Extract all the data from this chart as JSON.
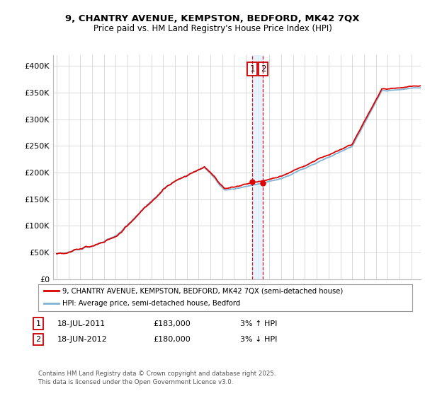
{
  "title1": "9, CHANTRY AVENUE, KEMPSTON, BEDFORD, MK42 7QX",
  "title2": "Price paid vs. HM Land Registry's House Price Index (HPI)",
  "ylabel_ticks": [
    "£0",
    "£50K",
    "£100K",
    "£150K",
    "£200K",
    "£250K",
    "£300K",
    "£350K",
    "£400K"
  ],
  "ytick_values": [
    0,
    50000,
    100000,
    150000,
    200000,
    250000,
    300000,
    350000,
    400000
  ],
  "ylim": [
    0,
    420000
  ],
  "xlim_start": 1994.7,
  "xlim_end": 2025.8,
  "xticks": [
    1995,
    1996,
    1997,
    1998,
    1999,
    2000,
    2001,
    2002,
    2003,
    2004,
    2005,
    2006,
    2007,
    2008,
    2009,
    2010,
    2011,
    2012,
    2013,
    2014,
    2015,
    2016,
    2017,
    2018,
    2019,
    2020,
    2021,
    2022,
    2023,
    2024,
    2025
  ],
  "property_color": "#dd0000",
  "hpi_color": "#7fb3d3",
  "vline1_x": 2011.54,
  "vline2_x": 2012.46,
  "vline_color": "#cc0000",
  "shade_color": "#ddeeff",
  "marker1_x": 2011.54,
  "marker1_y": 183000,
  "marker2_x": 2012.46,
  "marker2_y": 180000,
  "legend_label1": "9, CHANTRY AVENUE, KEMPSTON, BEDFORD, MK42 7QX (semi-detached house)",
  "legend_label2": "HPI: Average price, semi-detached house, Bedford",
  "footnote": "Contains HM Land Registry data © Crown copyright and database right 2025.\nThis data is licensed under the Open Government Licence v3.0.",
  "bg_color": "#ffffff",
  "grid_color": "#cccccc",
  "box1_label": "1",
  "box2_label": "2",
  "ann1_date": "18-JUL-2011",
  "ann1_price": "£183,000",
  "ann1_hpi": "3% ↑ HPI",
  "ann2_date": "18-JUN-2012",
  "ann2_price": "£180,000",
  "ann2_hpi": "3% ↓ HPI"
}
